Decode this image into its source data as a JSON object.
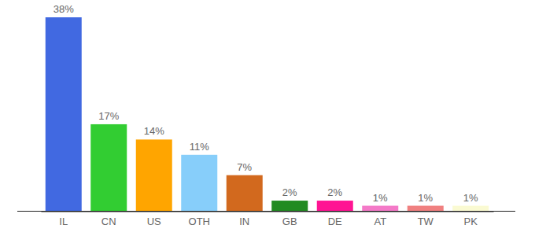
{
  "chart_data": {
    "type": "bar",
    "categories": [
      "IL",
      "CN",
      "US",
      "OTH",
      "IN",
      "GB",
      "DE",
      "AT",
      "TW",
      "PK"
    ],
    "values": [
      38,
      17,
      14,
      11,
      7,
      2,
      2,
      1,
      1,
      1
    ],
    "value_labels": [
      "38%",
      "17%",
      "14%",
      "11%",
      "7%",
      "2%",
      "2%",
      "1%",
      "1%",
      "1%"
    ],
    "colors": [
      "#4169e1",
      "#32cd32",
      "#ffa500",
      "#87cefa",
      "#d2691e",
      "#228b22",
      "#ff1493",
      "#f47ac8",
      "#f08080",
      "#fafad2"
    ],
    "data_labels": true,
    "tick_labels": "x"
  }
}
